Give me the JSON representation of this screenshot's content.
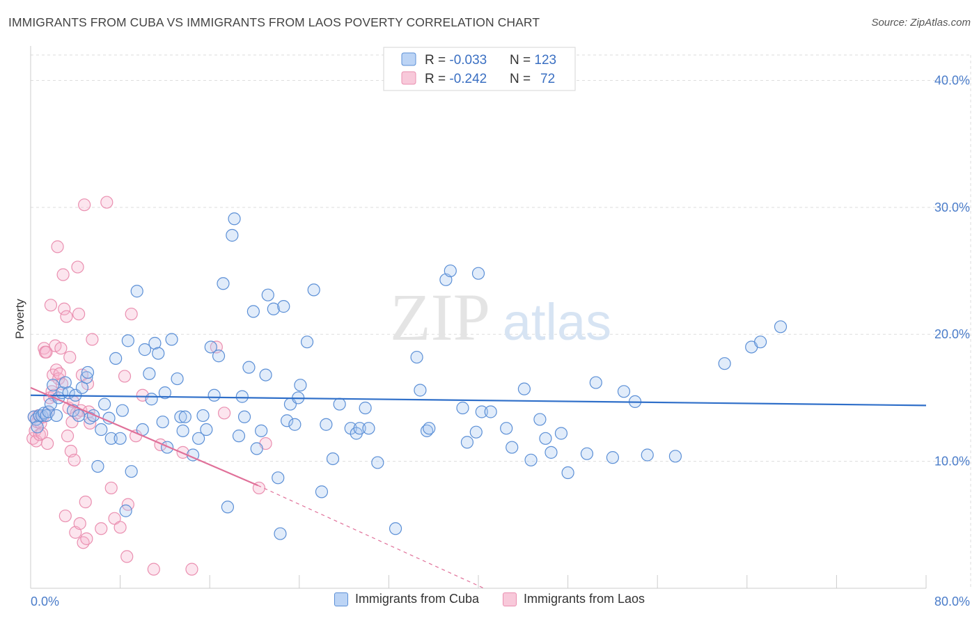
{
  "title": "IMMIGRANTS FROM CUBA VS IMMIGRANTS FROM LAOS POVERTY CORRELATION CHART",
  "source": "Source: ZipAtlas.com",
  "watermark": {
    "zip": "ZIP",
    "atlas": "atlas"
  },
  "colors": {
    "cuba": "#5b8fd6",
    "cuba_fill": "rgba(170,200,240,0.35)",
    "cuba_line": "#2f6fc9",
    "laos": "#ea8fb0",
    "laos_fill": "rgba(245,180,205,0.35)",
    "laos_line": "#e07099",
    "axis_label": "#4a7cc9",
    "grid": "#dddddd"
  },
  "legend_top": {
    "rows": [
      {
        "r_label": "R = ",
        "r_value": "-0.033",
        "n_label": "N = ",
        "n_value": "123"
      },
      {
        "r_label": "R = ",
        "r_value": "-0.242",
        "n_label": "N = ",
        "n_value": "72"
      }
    ]
  },
  "legend_bottom": [
    "Immigrants from Cuba",
    "Immigrants from Laos"
  ],
  "chart_data": {
    "type": "scatter",
    "ylabel": "Poverty",
    "xlim": [
      0,
      80
    ],
    "ylim": [
      0,
      42
    ],
    "x_tick_labels": [
      {
        "x": 0,
        "label": "0.0%"
      },
      {
        "x": 80,
        "label": "80.0%"
      }
    ],
    "y_tick_labels": [
      {
        "y": 10,
        "label": "10.0%"
      },
      {
        "y": 20,
        "label": "20.0%"
      },
      {
        "y": 30,
        "label": "30.0%"
      },
      {
        "y": 40,
        "label": "40.0%"
      }
    ],
    "series": [
      {
        "name": "Immigrants from Cuba",
        "trend": {
          "x0": 0,
          "y0": 15.2,
          "x1": 80,
          "y1": 14.4
        },
        "points": [
          [
            0.3,
            13.5
          ],
          [
            0.5,
            13.3
          ],
          [
            0.6,
            12.7
          ],
          [
            0.8,
            13.6
          ],
          [
            1.0,
            13.6
          ],
          [
            1.2,
            13.8
          ],
          [
            1.4,
            13.6
          ],
          [
            1.6,
            13.9
          ],
          [
            1.8,
            14.5
          ],
          [
            2.0,
            16.0
          ],
          [
            2.3,
            13.6
          ],
          [
            2.5,
            15.0
          ],
          [
            2.8,
            15.4
          ],
          [
            3.1,
            16.2
          ],
          [
            3.4,
            15.4
          ],
          [
            3.8,
            14.0
          ],
          [
            4.0,
            15.2
          ],
          [
            4.3,
            13.6
          ],
          [
            4.6,
            15.8
          ],
          [
            5.0,
            16.6
          ],
          [
            5.1,
            17.0
          ],
          [
            5.3,
            13.4
          ],
          [
            5.6,
            13.6
          ],
          [
            6.0,
            9.6
          ],
          [
            6.3,
            12.5
          ],
          [
            6.6,
            14.5
          ],
          [
            7.0,
            13.4
          ],
          [
            7.2,
            11.8
          ],
          [
            7.6,
            18.1
          ],
          [
            8.0,
            11.8
          ],
          [
            8.2,
            14.0
          ],
          [
            8.5,
            6.1
          ],
          [
            8.7,
            19.5
          ],
          [
            9.0,
            9.2
          ],
          [
            9.5,
            23.4
          ],
          [
            10.0,
            12.5
          ],
          [
            10.2,
            18.8
          ],
          [
            10.6,
            16.9
          ],
          [
            10.8,
            14.9
          ],
          [
            11.1,
            19.3
          ],
          [
            11.4,
            18.5
          ],
          [
            11.8,
            13.1
          ],
          [
            12.0,
            15.4
          ],
          [
            12.2,
            11.1
          ],
          [
            12.6,
            19.6
          ],
          [
            13.1,
            16.5
          ],
          [
            13.4,
            13.5
          ],
          [
            13.6,
            12.4
          ],
          [
            13.8,
            13.5
          ],
          [
            14.5,
            10.5
          ],
          [
            15.0,
            11.8
          ],
          [
            15.4,
            13.6
          ],
          [
            15.7,
            12.5
          ],
          [
            16.1,
            19.0
          ],
          [
            16.4,
            15.2
          ],
          [
            16.8,
            18.3
          ],
          [
            17.2,
            24.0
          ],
          [
            17.6,
            6.4
          ],
          [
            18.0,
            27.8
          ],
          [
            18.2,
            29.1
          ],
          [
            18.6,
            12.0
          ],
          [
            18.9,
            15.1
          ],
          [
            19.1,
            13.5
          ],
          [
            19.5,
            17.4
          ],
          [
            19.9,
            21.8
          ],
          [
            20.2,
            11.0
          ],
          [
            20.6,
            12.4
          ],
          [
            21.0,
            16.8
          ],
          [
            21.2,
            23.1
          ],
          [
            21.7,
            22.0
          ],
          [
            22.1,
            8.7
          ],
          [
            22.3,
            4.3
          ],
          [
            22.6,
            22.2
          ],
          [
            22.9,
            13.2
          ],
          [
            23.2,
            14.5
          ],
          [
            23.6,
            12.9
          ],
          [
            23.9,
            15.0
          ],
          [
            24.1,
            16.0
          ],
          [
            24.7,
            19.4
          ],
          [
            25.3,
            23.5
          ],
          [
            26.0,
            7.6
          ],
          [
            26.4,
            12.9
          ],
          [
            27.0,
            10.2
          ],
          [
            27.6,
            14.5
          ],
          [
            28.6,
            12.6
          ],
          [
            29.1,
            12.2
          ],
          [
            29.4,
            12.6
          ],
          [
            29.9,
            14.2
          ],
          [
            30.2,
            12.6
          ],
          [
            31.0,
            9.9
          ],
          [
            32.6,
            4.7
          ],
          [
            34.5,
            18.2
          ],
          [
            34.8,
            15.6
          ],
          [
            35.4,
            12.4
          ],
          [
            35.6,
            12.6
          ],
          [
            37.1,
            24.3
          ],
          [
            37.5,
            25.0
          ],
          [
            38.6,
            14.2
          ],
          [
            39.0,
            11.5
          ],
          [
            39.8,
            12.3
          ],
          [
            40.0,
            24.8
          ],
          [
            40.3,
            13.9
          ],
          [
            41.1,
            13.9
          ],
          [
            42.5,
            12.6
          ],
          [
            43.0,
            11.1
          ],
          [
            44.1,
            15.7
          ],
          [
            44.7,
            10.1
          ],
          [
            45.5,
            13.3
          ],
          [
            46.0,
            11.8
          ],
          [
            46.5,
            10.7
          ],
          [
            47.4,
            12.2
          ],
          [
            48.0,
            9.1
          ],
          [
            49.7,
            10.6
          ],
          [
            50.5,
            16.2
          ],
          [
            52.0,
            10.3
          ],
          [
            53.0,
            15.5
          ],
          [
            54.0,
            14.7
          ],
          [
            55.1,
            10.5
          ],
          [
            57.6,
            10.4
          ],
          [
            62.0,
            17.7
          ],
          [
            64.4,
            19.0
          ],
          [
            65.2,
            19.4
          ],
          [
            67.0,
            20.6
          ]
        ]
      },
      {
        "name": "Immigrants from Laos",
        "trend": {
          "x0": 0,
          "y0": 15.8,
          "x1": 20.3,
          "y1": 8.1,
          "dash_to_x": 40.5,
          "dash_to_y": 0
        },
        "points": [
          [
            0.2,
            11.8
          ],
          [
            0.3,
            13.5
          ],
          [
            0.4,
            12.4
          ],
          [
            0.5,
            11.6
          ],
          [
            0.6,
            13.1
          ],
          [
            0.7,
            13.6
          ],
          [
            0.8,
            12.1
          ],
          [
            0.9,
            13.0
          ],
          [
            1.0,
            12.2
          ],
          [
            1.1,
            13.5
          ],
          [
            1.2,
            18.9
          ],
          [
            1.3,
            18.6
          ],
          [
            1.4,
            18.6
          ],
          [
            1.5,
            11.4
          ],
          [
            1.6,
            13.9
          ],
          [
            1.7,
            15.0
          ],
          [
            1.8,
            22.3
          ],
          [
            1.9,
            15.5
          ],
          [
            2.0,
            16.8
          ],
          [
            2.1,
            15.2
          ],
          [
            2.2,
            19.1
          ],
          [
            2.3,
            17.2
          ],
          [
            2.4,
            26.9
          ],
          [
            2.5,
            16.5
          ],
          [
            2.6,
            16.9
          ],
          [
            2.7,
            18.9
          ],
          [
            2.8,
            16.1
          ],
          [
            2.9,
            24.7
          ],
          [
            3.0,
            22.0
          ],
          [
            3.1,
            5.7
          ],
          [
            3.2,
            21.4
          ],
          [
            3.3,
            12.0
          ],
          [
            3.4,
            14.2
          ],
          [
            3.5,
            18.2
          ],
          [
            3.6,
            10.8
          ],
          [
            3.7,
            13.1
          ],
          [
            3.8,
            14.7
          ],
          [
            3.9,
            10.1
          ],
          [
            4.0,
            4.4
          ],
          [
            4.1,
            13.8
          ],
          [
            4.2,
            25.3
          ],
          [
            4.3,
            21.6
          ],
          [
            4.4,
            5.1
          ],
          [
            4.5,
            14.0
          ],
          [
            4.6,
            16.8
          ],
          [
            4.7,
            3.6
          ],
          [
            4.8,
            30.2
          ],
          [
            4.9,
            6.8
          ],
          [
            5.0,
            3.9
          ],
          [
            5.1,
            16.1
          ],
          [
            5.2,
            13.9
          ],
          [
            5.3,
            13.0
          ],
          [
            5.5,
            19.6
          ],
          [
            6.3,
            4.7
          ],
          [
            6.8,
            30.4
          ],
          [
            7.2,
            7.9
          ],
          [
            7.5,
            5.5
          ],
          [
            8.0,
            4.8
          ],
          [
            8.4,
            16.7
          ],
          [
            8.6,
            2.5
          ],
          [
            8.7,
            6.6
          ],
          [
            9.0,
            21.6
          ],
          [
            9.4,
            12.0
          ],
          [
            10.0,
            15.2
          ],
          [
            11.0,
            1.5
          ],
          [
            11.6,
            11.3
          ],
          [
            13.6,
            10.7
          ],
          [
            14.4,
            1.5
          ],
          [
            16.6,
            19.0
          ],
          [
            17.3,
            13.8
          ],
          [
            20.4,
            7.9
          ],
          [
            21.0,
            11.4
          ]
        ]
      }
    ]
  }
}
